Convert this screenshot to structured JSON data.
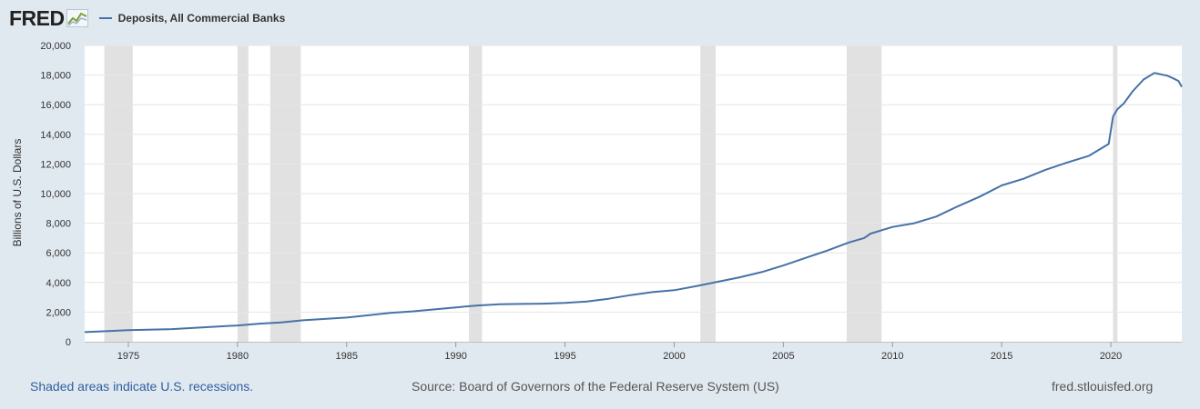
{
  "header": {
    "logo_text": "FRED",
    "logo_icon": "chart-line-icon",
    "legend_label": "Deposits, All Commercial Banks",
    "series_color": "#4572a7"
  },
  "footer": {
    "recessions_note": "Shaded areas indicate U.S. recessions.",
    "source": "Source: Board of Governors of the Federal Reserve System (US)",
    "site": "fred.stlouisfed.org"
  },
  "chart_data": {
    "type": "line",
    "title": "",
    "xlabel": "",
    "ylabel": "Billions of U.S. Dollars",
    "xlim": [
      1973.0,
      2023.25
    ],
    "ylim": [
      0,
      20000
    ],
    "x_ticks": [
      1975,
      1980,
      1985,
      1990,
      1995,
      2000,
      2005,
      2010,
      2015,
      2020
    ],
    "y_ticks": [
      0,
      2000,
      4000,
      6000,
      8000,
      10000,
      12000,
      14000,
      16000,
      18000,
      20000
    ],
    "y_tick_labels": [
      "0",
      "2,000",
      "4,000",
      "6,000",
      "8,000",
      "10,000",
      "12,000",
      "14,000",
      "16,000",
      "18,000",
      "20,000"
    ],
    "grid": true,
    "legend_position": "top-left",
    "recessions": [
      [
        1973.9,
        1975.2
      ],
      [
        1980.0,
        1980.5
      ],
      [
        1981.5,
        1982.9
      ],
      [
        1990.6,
        1991.2
      ],
      [
        2001.2,
        2001.9
      ],
      [
        2007.9,
        2009.5
      ],
      [
        2020.1,
        2020.3
      ]
    ],
    "series": [
      {
        "name": "Deposits, All Commercial Banks",
        "x": [
          1973.0,
          1975.0,
          1977.0,
          1980.0,
          1981.0,
          1982.0,
          1983.0,
          1985.0,
          1987.0,
          1988.0,
          1990.0,
          1991.0,
          1992.0,
          1993.0,
          1994.0,
          1995.0,
          1996.0,
          1997.0,
          1998.0,
          1999.0,
          2000.0,
          2001.0,
          2002.0,
          2003.0,
          2004.0,
          2005.0,
          2006.0,
          2007.0,
          2008.0,
          2008.7,
          2009.0,
          2010.0,
          2011.0,
          2012.0,
          2013.0,
          2014.0,
          2015.0,
          2016.0,
          2017.0,
          2018.0,
          2019.0,
          2019.9,
          2020.1,
          2020.3,
          2020.6,
          2021.0,
          2021.5,
          2022.0,
          2022.3,
          2022.6,
          2022.9,
          2023.1,
          2023.25
        ],
        "values": [
          650,
          780,
          850,
          1100,
          1220,
          1300,
          1450,
          1630,
          1950,
          2050,
          2320,
          2450,
          2530,
          2550,
          2570,
          2620,
          2720,
          2900,
          3150,
          3350,
          3480,
          3750,
          4050,
          4350,
          4700,
          5150,
          5650,
          6150,
          6700,
          7000,
          7300,
          7750,
          8000,
          8450,
          9150,
          9800,
          10550,
          11000,
          11600,
          12100,
          12550,
          13350,
          15200,
          15700,
          16100,
          16900,
          17700,
          18150,
          18050,
          17950,
          17750,
          17600,
          17200
        ]
      }
    ]
  }
}
